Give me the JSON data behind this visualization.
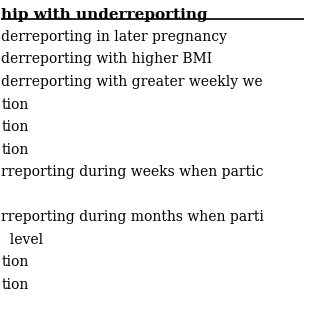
{
  "title": "hip with underreporting",
  "rows": [
    "derreporting in later pregnancy",
    "derreporting with higher BMI",
    "derreporting with greater weekly we",
    "tion",
    "tion",
    "tion",
    "rreporting during weeks when partic",
    "",
    "rreporting during months when parti",
    "  level",
    "tion",
    "tion"
  ],
  "bg_color": "#ffffff",
  "text_color": "#000000",
  "title_fontsize": 11,
  "row_fontsize": 10,
  "font_family": "serif"
}
